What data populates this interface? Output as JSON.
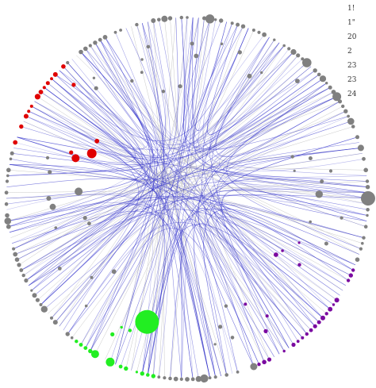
{
  "colors": {
    "background": "#ffffff",
    "node_default": "#808080",
    "red_group": "#e00000",
    "green_group": "#22ee22",
    "purple_group": "#7a0aa0",
    "edge_blue": "#3333cc",
    "edge_gray": "#c8c8c8"
  },
  "legend": {
    "items": [
      {
        "label": "1!"
      },
      {
        "label": "1\""
      },
      {
        "label": "20"
      },
      {
        "label": "2"
      },
      {
        "label": "23"
      },
      {
        "label": "23"
      },
      {
        "label": "24"
      }
    ]
  },
  "graph": {
    "layout": "radial-edge-bundling",
    "node_count": 200,
    "groups": [
      {
        "color": "red_group",
        "arc_start_deg": 198,
        "arc_end_deg": 228
      },
      {
        "color": "green_group",
        "arc_start_deg": 100,
        "arc_end_deg": 128
      },
      {
        "color": "purple_group",
        "arc_start_deg": 20,
        "arc_end_deg": 68
      }
    ]
  }
}
